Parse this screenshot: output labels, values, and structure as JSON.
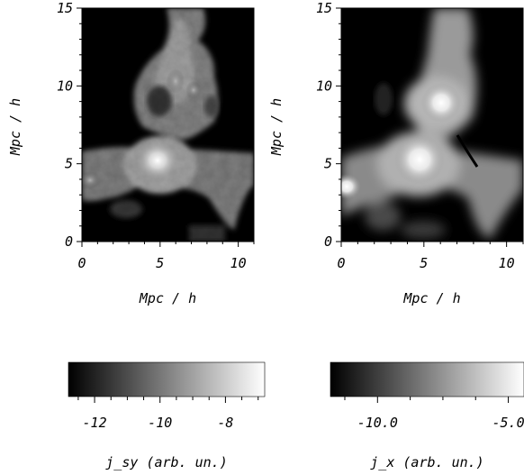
{
  "chart_data": [
    {
      "type": "heatmap",
      "panel": "left",
      "xlabel": "Mpc / h",
      "ylabel": "Mpc / h",
      "xlim": [
        0,
        11
      ],
      "ylim": [
        0,
        15
      ],
      "x_ticks": [
        "0",
        "5",
        "10"
      ],
      "y_ticks": [
        "0",
        "5",
        "10",
        "15"
      ],
      "colorbar": {
        "label": "j_sy (arb. un.)",
        "range": [
          -12.8,
          -6.8
        ],
        "ticks": [
          "-12",
          "-10",
          "-8"
        ],
        "colormap": "grayscale"
      },
      "features": [
        {
          "x": 5.0,
          "y": 5.0,
          "intensity": 1.0
        },
        {
          "x": 6.3,
          "y": 9.0,
          "intensity": 0.55
        },
        {
          "x": 3.5,
          "y": 9.5,
          "intensity": 0.45
        }
      ]
    },
    {
      "type": "heatmap",
      "panel": "right",
      "xlabel": "Mpc / h",
      "ylabel": "Mpc / h",
      "xlim": [
        0,
        11
      ],
      "ylim": [
        0,
        15
      ],
      "x_ticks": [
        "0",
        "5",
        "10"
      ],
      "y_ticks": [
        "0",
        "5",
        "10",
        "15"
      ],
      "colorbar": {
        "label": "j_x (arb. un.)",
        "range": [
          -11.8,
          -4.4
        ],
        "ticks": [
          "-10.0",
          "-5.0"
        ],
        "colormap": "grayscale"
      },
      "features": [
        {
          "x": 5.0,
          "y": 5.3,
          "intensity": 1.0
        },
        {
          "x": 6.3,
          "y": 8.8,
          "intensity": 0.9
        },
        {
          "x": 0.2,
          "y": 3.5,
          "intensity": 0.8
        }
      ]
    }
  ]
}
